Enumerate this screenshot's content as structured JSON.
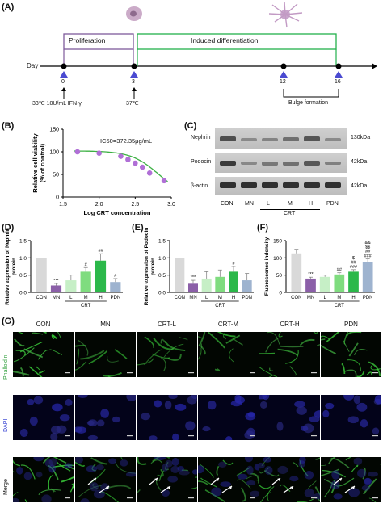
{
  "panels": {
    "A": {
      "letter": "(A)",
      "day_label": "Day",
      "proliferation": "Proliferation",
      "induced_differentiation": "Induced differentiation",
      "ticks": [
        "0",
        "3",
        "12",
        "16"
      ],
      "cond_left": "33℃ 10U/mL IFN-γ",
      "cond_mid": "37℃",
      "bulge": "Bulge formation",
      "colors": {
        "proliferation": "#7e5a9b",
        "differentiation": "#22b14c",
        "triangle": "#4a4ad1"
      }
    },
    "B": {
      "letter": "(B)",
      "annotation": "IC50=372.35μg/mL"
    },
    "C": {
      "letter": "(C)",
      "rows": [
        {
          "name": "Nephrin",
          "kda": "130kDa"
        },
        {
          "name": "Podocin",
          "kda": "42kDa"
        },
        {
          "name": "β-actin",
          "kda": "42kDa"
        }
      ],
      "lanes": [
        "CON",
        "MN",
        "L",
        "M",
        "H",
        "PDN"
      ],
      "group_label": "CRT"
    },
    "D": {
      "letter": "(D)",
      "crt_label": "CRT"
    },
    "E": {
      "letter": "(E)",
      "crt_label": "CRT"
    },
    "F": {
      "letter": "(F)",
      "crt_label": "CRT"
    },
    "G": {
      "letter": "(G)",
      "columns": [
        "CON",
        "MN",
        "CRT-L",
        "CRT-M",
        "CRT-H",
        "PDN"
      ],
      "rows": [
        "Phalloidin",
        "DAPI",
        "Merge"
      ]
    }
  },
  "chart_data": [
    {
      "type": "scatter",
      "panel": "B",
      "xlabel": "Log CRT concentration",
      "ylabel": "Relative cell viability (% of control)",
      "xlim": [
        1.5,
        3.0
      ],
      "ylim": [
        0,
        150
      ],
      "xticks": [
        "1.5",
        "2.0",
        "2.5",
        "3.0"
      ],
      "yticks": [
        "0",
        "50",
        "100",
        "150"
      ],
      "x": [
        1.7,
        2.0,
        2.3,
        2.4,
        2.5,
        2.6,
        2.7,
        2.9
      ],
      "y": [
        100,
        97,
        90,
        83,
        75,
        66,
        53,
        36
      ],
      "fit_color": "#3cb043",
      "point_color": "#b06fd6"
    },
    {
      "type": "bar",
      "panel": "D",
      "ylabel": "Relative expression of Nephrin protein",
      "categories": [
        "CON",
        "MN",
        "L",
        "M",
        "H",
        "PDN"
      ],
      "values": [
        1.0,
        0.2,
        0.35,
        0.6,
        0.92,
        0.3
      ],
      "errors": [
        0.0,
        0.06,
        0.15,
        0.12,
        0.2,
        0.1
      ],
      "sig": [
        "",
        "***",
        "",
        "#",
        "##",
        "#"
      ],
      "ylim": [
        0,
        1.5
      ],
      "yticks": [
        "0.0",
        "0.5",
        "1.0",
        "1.5"
      ],
      "colors": [
        "#d9d9d9",
        "#8b5fa8",
        "#c6efc6",
        "#7fdc7f",
        "#2bb84a",
        "#9eb3cf"
      ]
    },
    {
      "type": "bar",
      "panel": "E",
      "ylabel": "Relative expression of Podocin protein",
      "categories": [
        "CON",
        "MN",
        "L",
        "M",
        "H",
        "PDN"
      ],
      "values": [
        1.0,
        0.25,
        0.4,
        0.45,
        0.6,
        0.35
      ],
      "errors": [
        0.0,
        0.1,
        0.2,
        0.2,
        0.15,
        0.2
      ],
      "sig": [
        "",
        "***",
        "",
        "",
        "#",
        ""
      ],
      "ylim": [
        0,
        1.5
      ],
      "yticks": [
        "0.0",
        "0.5",
        "1.0",
        "1.5"
      ],
      "colors": [
        "#d9d9d9",
        "#8b5fa8",
        "#c6efc6",
        "#7fdc7f",
        "#2bb84a",
        "#9eb3cf"
      ]
    },
    {
      "type": "bar",
      "panel": "F",
      "ylabel": "Fluorescence indensity",
      "categories": [
        "CON",
        "MN",
        "L",
        "M",
        "H",
        "PDN"
      ],
      "values": [
        113,
        40,
        45,
        52,
        60,
        87
      ],
      "errors": [
        12,
        4,
        5,
        5,
        6,
        10
      ],
      "sig": [
        "",
        "***",
        "",
        "##",
        "$ ## ###",
        "&& $$ ## ###"
      ],
      "ylim": [
        0,
        150
      ],
      "yticks": [
        "0",
        "50",
        "100",
        "150"
      ],
      "colors": [
        "#d9d9d9",
        "#8b5fa8",
        "#c6efc6",
        "#7fdc7f",
        "#2bb84a",
        "#9eb3cf"
      ]
    }
  ]
}
